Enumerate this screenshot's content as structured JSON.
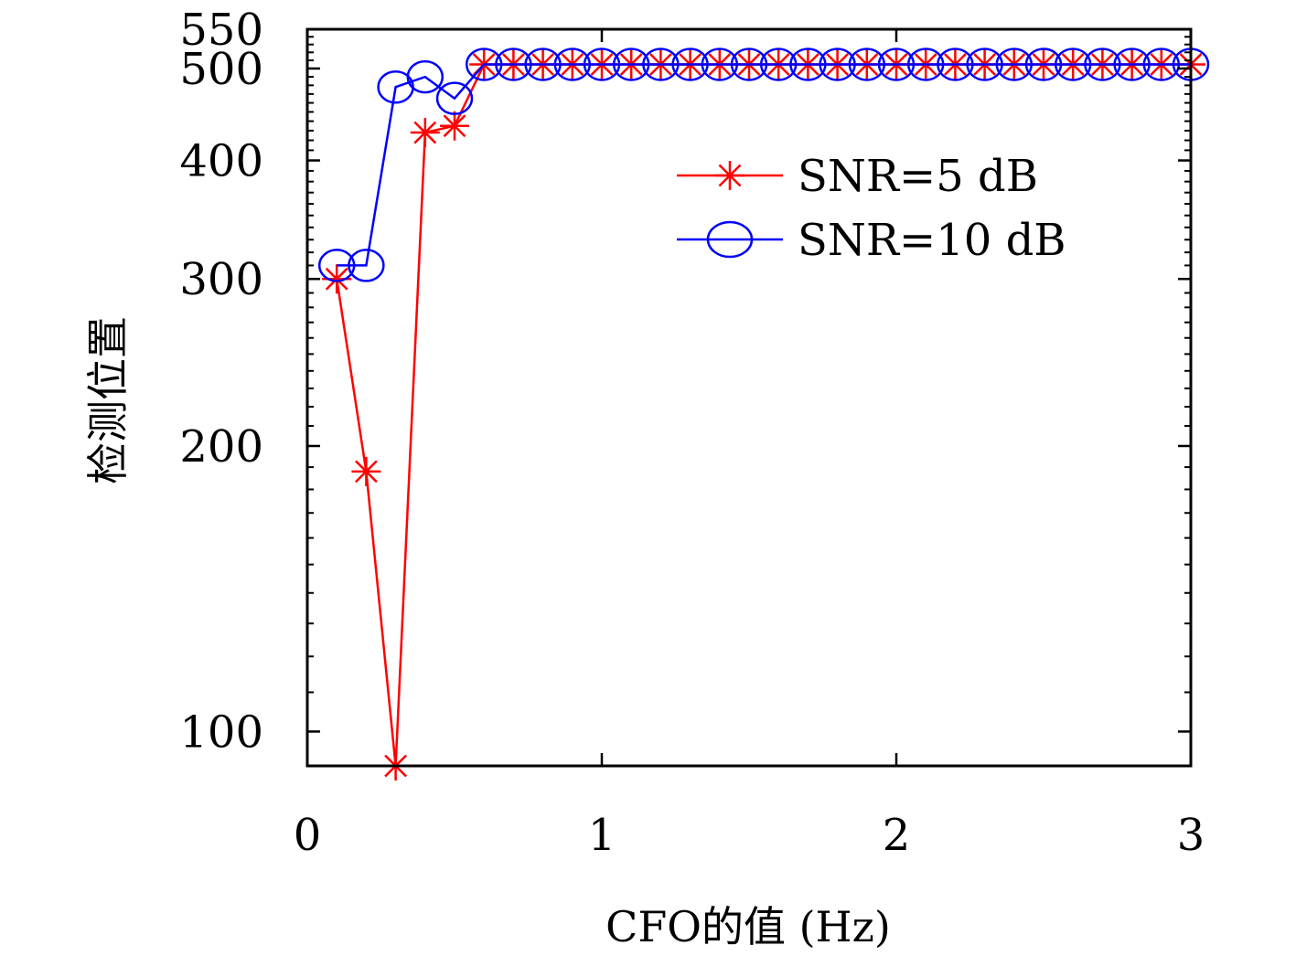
{
  "chart_data": {
    "type": "line",
    "title": "",
    "xlabel": "CFO的值 (Hz)",
    "ylabel": "检测位置",
    "xlim": [
      0,
      3
    ],
    "ylim": [
      92,
      550
    ],
    "yscale": "log",
    "xticks": [
      0,
      1,
      2,
      3
    ],
    "xtick_labels": [
      "0",
      "1",
      "2",
      "3"
    ],
    "yticks": [
      100,
      200,
      300,
      400,
      500,
      550
    ],
    "ytick_labels": [
      "100",
      "200",
      "300",
      "400",
      "500",
      "550"
    ],
    "grid": false,
    "legend_position": "top-right",
    "series": [
      {
        "name": "SNR=5 dB",
        "color": "#ff0000",
        "marker": "asterisk",
        "x": [
          0.1,
          0.2,
          0.3,
          0.4,
          0.5,
          0.6,
          0.7,
          0.8,
          0.9,
          1.0,
          1.1,
          1.2,
          1.3,
          1.4,
          1.5,
          1.6,
          1.7,
          1.8,
          1.9,
          2.0,
          2.1,
          2.2,
          2.3,
          2.4,
          2.5,
          2.6,
          2.7,
          2.8,
          2.9,
          3.0
        ],
        "y": [
          300,
          188,
          92,
          428,
          435,
          505,
          505,
          505,
          505,
          505,
          505,
          505,
          505,
          505,
          505,
          505,
          505,
          505,
          505,
          505,
          505,
          505,
          505,
          505,
          505,
          505,
          505,
          505,
          505,
          505
        ]
      },
      {
        "name": "SNR=10 dB",
        "color": "#0000ff",
        "marker": "circle",
        "x": [
          0.1,
          0.2,
          0.3,
          0.4,
          0.5,
          0.6,
          0.7,
          0.8,
          0.9,
          1.0,
          1.1,
          1.2,
          1.3,
          1.4,
          1.5,
          1.6,
          1.7,
          1.8,
          1.9,
          2.0,
          2.1,
          2.2,
          2.3,
          2.4,
          2.5,
          2.6,
          2.7,
          2.8,
          2.9,
          3.0
        ],
        "y": [
          310,
          310,
          478,
          490,
          465,
          505,
          505,
          505,
          505,
          505,
          505,
          505,
          505,
          505,
          505,
          505,
          505,
          505,
          505,
          505,
          505,
          505,
          505,
          505,
          505,
          505,
          505,
          505,
          505,
          505
        ]
      }
    ]
  }
}
